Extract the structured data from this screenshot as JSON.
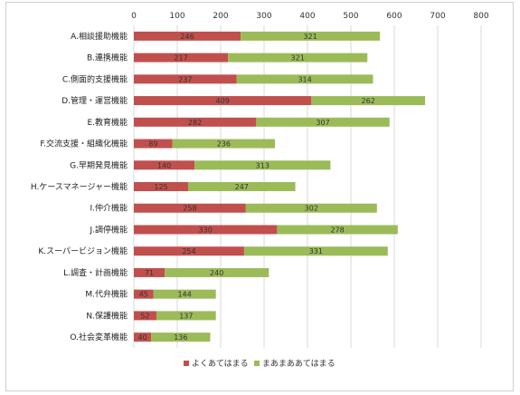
{
  "chart_data": {
    "type": "bar",
    "orientation": "horizontal",
    "stacked": true,
    "title": "",
    "xlabel": "",
    "ylabel": "",
    "xlim": [
      0,
      800
    ],
    "xticks": [
      0,
      100,
      200,
      300,
      400,
      500,
      600,
      700,
      800
    ],
    "grid": true,
    "legend_position": "bottom",
    "categories": [
      "A.相談援助機能",
      "B.連携機能",
      "C.側面的支援機能",
      "D.管理・運営機能",
      "E.教育機能",
      "F.交流支援・組織化機能",
      "G.早期発見機能",
      "H.ケースマネージャー機能",
      "I.仲介機能",
      "J.調停機能",
      "K.スーパービジョン機能",
      "L.調査・計画機能",
      "M.代弁機能",
      "N.保護機能",
      "O.社会変革機能"
    ],
    "series": [
      {
        "name": "よくあてはまる",
        "color": "#c0504d",
        "values": [
          246,
          217,
          237,
          409,
          282,
          89,
          140,
          125,
          258,
          330,
          254,
          71,
          45,
          52,
          40
        ]
      },
      {
        "name": "まあまああてはまる",
        "color": "#9bbb59",
        "values": [
          321,
          321,
          314,
          262,
          307,
          236,
          313,
          247,
          302,
          278,
          331,
          240,
          144,
          137,
          136
        ]
      }
    ]
  }
}
